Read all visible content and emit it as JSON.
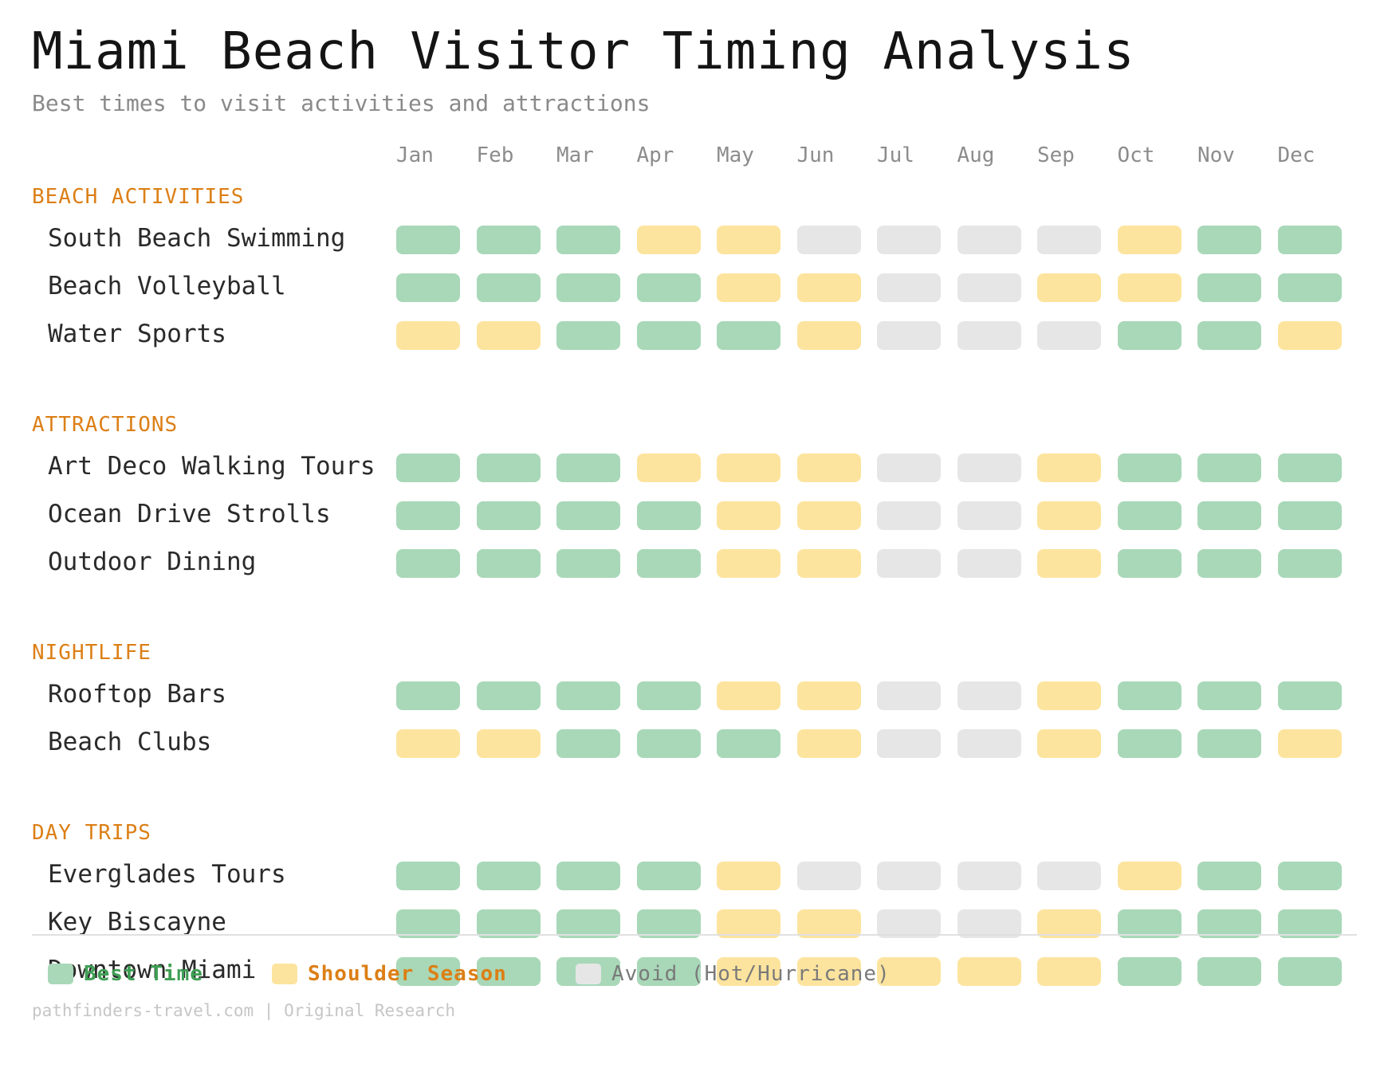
{
  "title": "Miami Beach Visitor Timing Analysis",
  "subtitle": "Best times to visit activities and attractions",
  "colors": {
    "best": "#a8d8b8",
    "shoulder": "#fde49e",
    "avoid": "#e6e6e6",
    "section": "#dc7f16",
    "best_text": "#3f9f55",
    "shoulder_text": "#dc7f16",
    "avoid_text": "#7a7a7a"
  },
  "chart_data": {
    "type": "heatmap",
    "months": [
      "Jan",
      "Feb",
      "Mar",
      "Apr",
      "May",
      "Jun",
      "Jul",
      "Aug",
      "Sep",
      "Oct",
      "Nov",
      "Dec"
    ],
    "levels": {
      "B": "Best Time",
      "S": "Shoulder Season",
      "A": "Avoid (Hot/Hurricane)"
    },
    "sections": [
      {
        "name": "BEACH ACTIVITIES",
        "rows": [
          {
            "label": "South Beach Swimming",
            "values": [
              "B",
              "B",
              "B",
              "S",
              "S",
              "A",
              "A",
              "A",
              "A",
              "S",
              "B",
              "B"
            ]
          },
          {
            "label": "Beach Volleyball",
            "values": [
              "B",
              "B",
              "B",
              "B",
              "S",
              "S",
              "A",
              "A",
              "S",
              "S",
              "B",
              "B"
            ]
          },
          {
            "label": "Water Sports",
            "values": [
              "S",
              "S",
              "B",
              "B",
              "B",
              "S",
              "A",
              "A",
              "A",
              "B",
              "B",
              "S"
            ]
          }
        ]
      },
      {
        "name": "ATTRACTIONS",
        "rows": [
          {
            "label": "Art Deco Walking Tours",
            "values": [
              "B",
              "B",
              "B",
              "S",
              "S",
              "S",
              "A",
              "A",
              "S",
              "B",
              "B",
              "B"
            ]
          },
          {
            "label": "Ocean Drive Strolls",
            "values": [
              "B",
              "B",
              "B",
              "B",
              "S",
              "S",
              "A",
              "A",
              "S",
              "B",
              "B",
              "B"
            ]
          },
          {
            "label": "Outdoor Dining",
            "values": [
              "B",
              "B",
              "B",
              "B",
              "S",
              "S",
              "A",
              "A",
              "S",
              "B",
              "B",
              "B"
            ]
          }
        ]
      },
      {
        "name": "NIGHTLIFE",
        "rows": [
          {
            "label": "Rooftop Bars",
            "values": [
              "B",
              "B",
              "B",
              "B",
              "S",
              "S",
              "A",
              "A",
              "S",
              "B",
              "B",
              "B"
            ]
          },
          {
            "label": "Beach Clubs",
            "values": [
              "S",
              "S",
              "B",
              "B",
              "B",
              "S",
              "A",
              "A",
              "S",
              "B",
              "B",
              "S"
            ]
          }
        ]
      },
      {
        "name": "DAY TRIPS",
        "rows": [
          {
            "label": "Everglades Tours",
            "values": [
              "B",
              "B",
              "B",
              "B",
              "S",
              "A",
              "A",
              "A",
              "A",
              "S",
              "B",
              "B"
            ]
          },
          {
            "label": "Key Biscayne",
            "values": [
              "B",
              "B",
              "B",
              "B",
              "S",
              "S",
              "A",
              "A",
              "S",
              "B",
              "B",
              "B"
            ]
          },
          {
            "label": "Downtown Miami",
            "values": [
              "B",
              "B",
              "B",
              "B",
              "S",
              "S",
              "S",
              "S",
              "S",
              "B",
              "B",
              "B"
            ]
          }
        ]
      }
    ]
  },
  "legend": [
    {
      "key": "best",
      "label": "Best Time"
    },
    {
      "key": "shoulder",
      "label": "Shoulder Season"
    },
    {
      "key": "avoid",
      "label": "Avoid (Hot/Hurricane)"
    }
  ],
  "footer": "pathfinders-travel.com | Original Research"
}
